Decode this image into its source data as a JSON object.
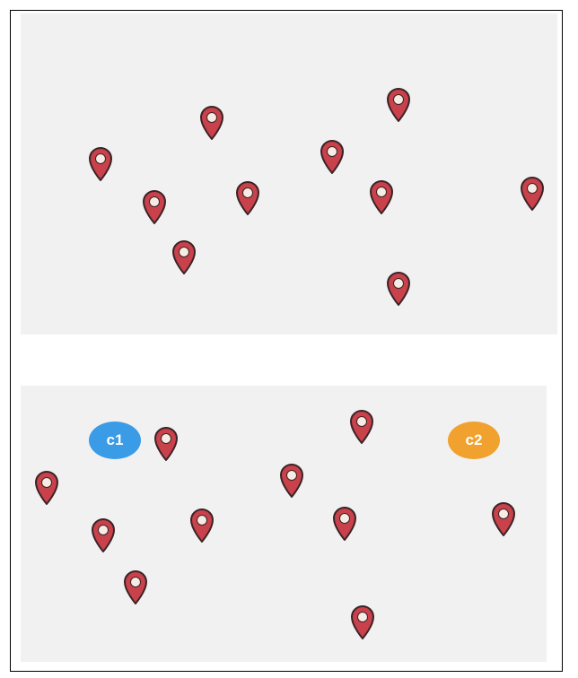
{
  "colors": {
    "pin_fill": "#c8414b",
    "pin_stroke": "#3a2326",
    "pin_center": "#f6ece4",
    "panel_bg": "#f1f1f2"
  },
  "icons": {
    "pin": "map-marker-icon"
  },
  "clusters": [
    {
      "label": "c1",
      "color": "#3a9be6"
    },
    {
      "label": "c2",
      "color": "#f0a12e"
    }
  ]
}
